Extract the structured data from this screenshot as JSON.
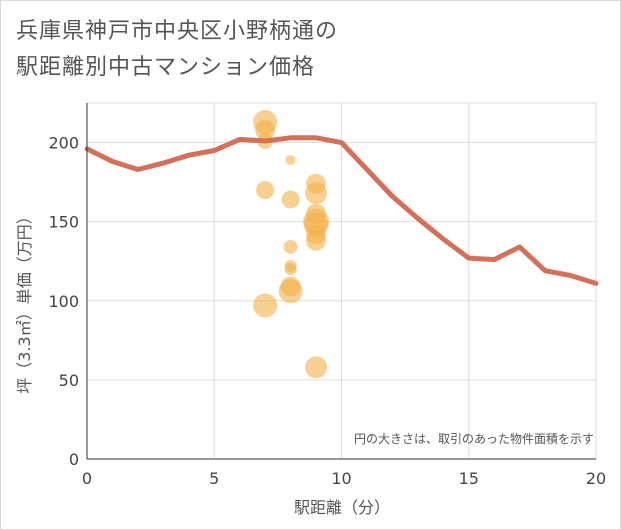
{
  "title_line1": "兵庫県神戸市中央区小野柄通の",
  "title_line2": "駅距離別中古マンション価格",
  "chart_data": {
    "type": "scatter",
    "xlabel": "駅距離（分）",
    "ylabel": "坪（3.3㎡）単価（万円）",
    "xlim": [
      0,
      20
    ],
    "ylim": [
      0,
      225
    ],
    "xticks": [
      "0",
      "5",
      "10",
      "15",
      "20"
    ],
    "yticks": [
      "0",
      "50",
      "100",
      "150",
      "200"
    ],
    "xtick_values": [
      0,
      5,
      10,
      15,
      20
    ],
    "ytick_values": [
      0,
      50,
      100,
      150,
      200
    ],
    "grid": true,
    "note": "円の大きさは、取引のあった物件面積を示す",
    "line_series": {
      "x": [
        0,
        1,
        2,
        3,
        4,
        5,
        6,
        7,
        8,
        9,
        10,
        11,
        12,
        13,
        14,
        15,
        16,
        17,
        18,
        19,
        20
      ],
      "y": [
        196,
        188,
        183,
        187,
        192,
        195,
        202,
        201,
        203,
        203,
        200,
        183,
        166,
        152,
        139,
        127,
        126,
        134,
        119,
        116,
        111
      ],
      "color": "#d4705a"
    },
    "scatter_series": {
      "color": "#f2b04a",
      "points": [
        {
          "x": 7,
          "y": 213,
          "size": 12
        },
        {
          "x": 7,
          "y": 208,
          "size": 10
        },
        {
          "x": 7,
          "y": 201,
          "size": 8
        },
        {
          "x": 7,
          "y": 170,
          "size": 9
        },
        {
          "x": 7,
          "y": 97,
          "size": 12
        },
        {
          "x": 8,
          "y": 189,
          "size": 5
        },
        {
          "x": 8,
          "y": 164,
          "size": 9
        },
        {
          "x": 8,
          "y": 134,
          "size": 7
        },
        {
          "x": 8,
          "y": 122,
          "size": 6
        },
        {
          "x": 8,
          "y": 120,
          "size": 6
        },
        {
          "x": 8,
          "y": 109,
          "size": 10
        },
        {
          "x": 8,
          "y": 106,
          "size": 12
        },
        {
          "x": 9,
          "y": 174,
          "size": 10
        },
        {
          "x": 9,
          "y": 168,
          "size": 11
        },
        {
          "x": 9,
          "y": 155,
          "size": 10
        },
        {
          "x": 9,
          "y": 150,
          "size": 13
        },
        {
          "x": 9,
          "y": 148,
          "size": 12
        },
        {
          "x": 9,
          "y": 142,
          "size": 10
        },
        {
          "x": 9,
          "y": 138,
          "size": 10
        },
        {
          "x": 9,
          "y": 58,
          "size": 11
        }
      ]
    }
  }
}
